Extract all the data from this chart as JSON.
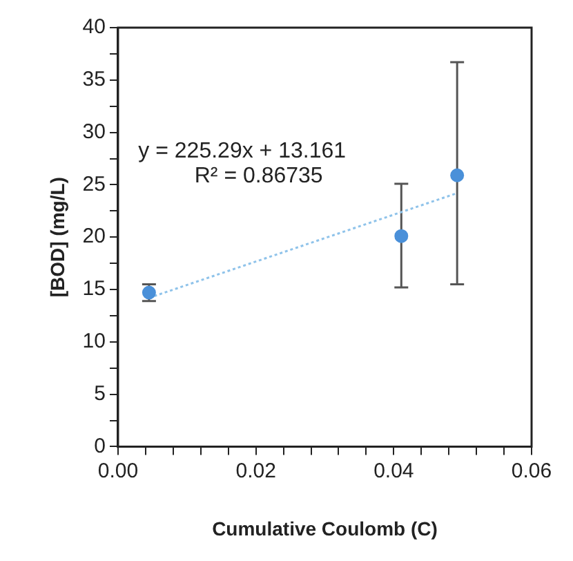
{
  "chart_data": {
    "type": "scatter",
    "xlabel": "Cumulative Coulomb (C)",
    "ylabel": "[BOD] (mg/L)",
    "xlim": [
      0,
      0.06
    ],
    "ylim": [
      0,
      40
    ],
    "xticks": [
      {
        "value": 0,
        "label": "0.00"
      },
      {
        "value": 0.004,
        "label": null
      },
      {
        "value": 0.008,
        "label": null
      },
      {
        "value": 0.012,
        "label": null
      },
      {
        "value": 0.016,
        "label": null
      },
      {
        "value": 0.02,
        "label": "0.02"
      },
      {
        "value": 0.024,
        "label": null
      },
      {
        "value": 0.028,
        "label": null
      },
      {
        "value": 0.032,
        "label": null
      },
      {
        "value": 0.036,
        "label": null
      },
      {
        "value": 0.04,
        "label": "0.04"
      },
      {
        "value": 0.044,
        "label": null
      },
      {
        "value": 0.048,
        "label": null
      },
      {
        "value": 0.052,
        "label": null
      },
      {
        "value": 0.056,
        "label": null
      },
      {
        "value": 0.06,
        "label": "0.06"
      }
    ],
    "yticks": [
      0,
      {
        "value": 2.5,
        "label": null
      },
      5,
      {
        "value": 7.5,
        "label": null
      },
      10,
      {
        "value": 12.5,
        "label": null
      },
      15,
      {
        "value": 17.5,
        "label": null
      },
      20,
      {
        "value": 22.5,
        "label": null
      },
      25,
      {
        "value": 27.5,
        "label": null
      },
      30,
      {
        "value": 32.5,
        "label": null
      },
      35,
      {
        "value": 37.5,
        "label": null
      },
      40
    ],
    "grid": false,
    "legend": false,
    "marker": "circle",
    "series": [
      {
        "type": "scatter",
        "color": "#4a90d9",
        "x": [
          0.0045,
          0.0411,
          0.0492
        ],
        "values": [
          14.7,
          20.1,
          25.9
        ],
        "errors": [
          0.8,
          [
            15.2,
            25.1
          ],
          [
            15.5,
            36.7
          ]
        ]
      },
      {
        "type": "line",
        "color": "#8fc3ea",
        "line_style": "dotted",
        "marker": "none",
        "x": [
          0.0045,
          0.0492
        ],
        "values": [
          14.2,
          24.2
        ]
      }
    ],
    "annotations": [
      "y = 225.29x + 13.161",
      "R² = 0.86735"
    ]
  }
}
